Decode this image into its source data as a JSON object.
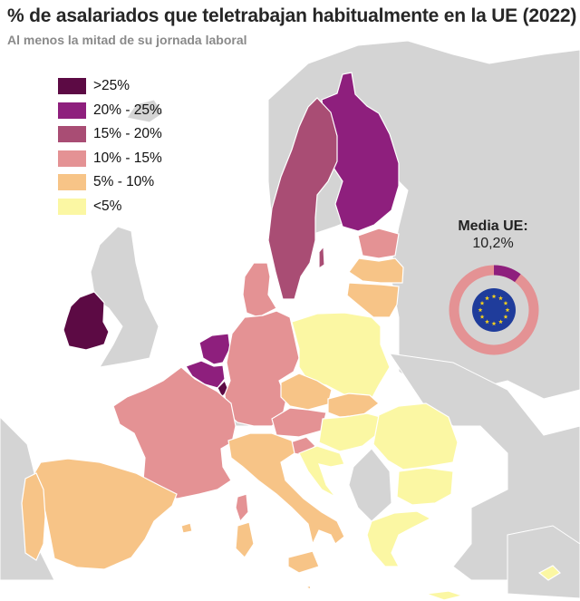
{
  "title": "% de asalariados que teletrabajan habitualmente en la UE (2022)",
  "subtitle": "Al menos la mitad de su jornada laboral",
  "legend": [
    {
      "label": ">25%",
      "color": "#5c0a44"
    },
    {
      "label": "20% - 25%",
      "color": "#8e1f7d"
    },
    {
      "label": "15% - 20%",
      "color": "#a94d74"
    },
    {
      "label": "10% - 15%",
      "color": "#e49294"
    },
    {
      "label": "5% - 10%",
      "color": "#f7c487"
    },
    {
      "label": "<5%",
      "color": "#fbf7a3"
    }
  ],
  "average": {
    "label": "Media UE:",
    "value_text": "10,2%",
    "value": 10.2,
    "ring_color": "#e49294",
    "highlight_color": "#8e1f7d"
  },
  "colors": {
    "non_eu_land": "#d4d4d4",
    "sea": "#ffffff",
    "border": "#ffffff"
  },
  "icons": {
    "eu_flag": "eu-flag-icon"
  }
}
